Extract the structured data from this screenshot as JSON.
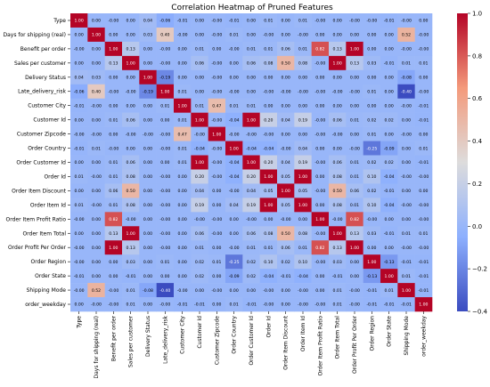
{
  "chart_data": {
    "type": "heatmap",
    "title": "Correlation Heatmap of Pruned Features",
    "xlabel": "",
    "ylabel": "",
    "labels": [
      "Type",
      "Days for shipping (real)",
      "Benefit per order",
      "Sales per customer",
      "Delivery Status",
      "Late_delivery_risk",
      "Customer City",
      "Customer Id",
      "Customer Zipcode",
      "Order Country",
      "Order Customer Id",
      "Order Id",
      "Order Item Discount",
      "Order Item Id",
      "Order Item Profit Ratio",
      "Order Item Total",
      "Order Profit Per Order",
      "Order Region",
      "Order State",
      "Shipping Mode",
      "order_weekday"
    ],
    "cell_labels": [
      [
        "1.00",
        "0.00",
        "-0.00",
        "0.00",
        "0.04",
        "-0.06",
        "-0.01",
        "0.00",
        "-0.00",
        "-0.01",
        "0.00",
        "0.01",
        "0.00",
        "0.01",
        "-0.00",
        "0.00",
        "-0.00",
        "-0.00",
        "-0.01",
        "-0.00",
        "0.00"
      ],
      [
        "0.00",
        "1.00",
        "0.00",
        "0.00",
        "0.03",
        "0.40",
        "-0.00",
        "0.00",
        "-0.00",
        "0.01",
        "0.00",
        "-0.00",
        "0.00",
        "-0.00",
        "0.00",
        "0.00",
        "0.00",
        "0.00",
        "0.00",
        "0.52",
        "-0.00"
      ],
      [
        "-0.00",
        "0.00",
        "1.00",
        "0.13",
        "0.00",
        "-0.00",
        "0.00",
        "0.01",
        "0.00",
        "-0.00",
        "0.01",
        "0.01",
        "0.06",
        "0.01",
        "0.82",
        "0.13",
        "1.00",
        "0.00",
        "0.00",
        "-0.00",
        "-0.00"
      ],
      [
        "0.00",
        "0.00",
        "0.13",
        "1.00",
        "0.00",
        "-0.00",
        "0.00",
        "0.06",
        "-0.00",
        "0.00",
        "0.06",
        "0.08",
        "0.50",
        "0.08",
        "-0.00",
        "1.00",
        "0.13",
        "0.03",
        "-0.01",
        "0.01",
        "0.01"
      ],
      [
        "0.04",
        "0.03",
        "0.00",
        "0.00",
        "1.00",
        "-0.19",
        "0.00",
        "0.00",
        "-0.00",
        "0.00",
        "0.00",
        "0.00",
        "0.00",
        "0.00",
        "0.00",
        "0.00",
        "0.00",
        "0.00",
        "0.00",
        "-0.08",
        "0.00"
      ],
      [
        "-0.06",
        "0.40",
        "-0.00",
        "-0.00",
        "-0.19",
        "1.00",
        "0.01",
        "0.00",
        "-0.00",
        "-0.00",
        "0.00",
        "-0.00",
        "-0.00",
        "-0.00",
        "-0.00",
        "-0.00",
        "-0.00",
        "0.01",
        "0.00",
        "-0.40",
        "-0.00"
      ],
      [
        "-0.01",
        "-0.00",
        "0.00",
        "0.00",
        "0.00",
        "0.01",
        "1.00",
        "0.01",
        "0.47",
        "0.01",
        "0.01",
        "0.00",
        "0.00",
        "0.00",
        "0.00",
        "0.00",
        "0.00",
        "0.00",
        "0.00",
        "-0.00",
        "-0.01"
      ],
      [
        "0.00",
        "0.00",
        "0.01",
        "0.06",
        "0.00",
        "0.00",
        "0.01",
        "1.00",
        "-0.00",
        "-0.04",
        "1.00",
        "0.20",
        "0.04",
        "0.19",
        "-0.00",
        "0.06",
        "0.01",
        "0.02",
        "0.02",
        "0.00",
        "-0.01"
      ],
      [
        "-0.00",
        "-0.00",
        "0.00",
        "-0.00",
        "-0.00",
        "-0.00",
        "0.47",
        "-0.00",
        "1.00",
        "-0.00",
        "-0.00",
        "-0.00",
        "0.00",
        "0.00",
        "-0.00",
        "-0.00",
        "0.00",
        "0.01",
        "0.00",
        "-0.00",
        "0.00"
      ],
      [
        "-0.01",
        "0.01",
        "-0.00",
        "0.00",
        "0.00",
        "-0.00",
        "0.01",
        "-0.04",
        "-0.00",
        "1.00",
        "-0.04",
        "-0.04",
        "-0.00",
        "0.04",
        "0.00",
        "0.00",
        "-0.00",
        "-0.25",
        "-0.09",
        "0.00",
        "0.01"
      ],
      [
        "0.00",
        "0.00",
        "0.01",
        "0.06",
        "0.00",
        "0.00",
        "0.01",
        "1.00",
        "-0.00",
        "-0.04",
        "1.00",
        "0.20",
        "0.04",
        "0.19",
        "-0.00",
        "0.06",
        "0.01",
        "0.02",
        "0.02",
        "0.00",
        "-0.01"
      ],
      [
        "0.01",
        "-0.00",
        "0.01",
        "0.08",
        "0.00",
        "-0.00",
        "0.00",
        "0.20",
        "-0.00",
        "-0.04",
        "0.20",
        "1.00",
        "0.05",
        "1.00",
        "0.00",
        "0.08",
        "0.01",
        "0.10",
        "-0.04",
        "-0.00",
        "-0.00"
      ],
      [
        "0.00",
        "0.00",
        "0.06",
        "0.50",
        "0.00",
        "-0.00",
        "0.00",
        "0.04",
        "0.00",
        "-0.00",
        "0.04",
        "0.05",
        "1.00",
        "0.05",
        "-0.00",
        "0.50",
        "0.06",
        "0.02",
        "-0.01",
        "0.00",
        "0.00"
      ],
      [
        "0.01",
        "-0.00",
        "0.01",
        "0.08",
        "0.00",
        "-0.00",
        "0.00",
        "0.19",
        "0.00",
        "0.04",
        "0.19",
        "1.00",
        "0.05",
        "1.00",
        "0.00",
        "0.08",
        "0.01",
        "0.10",
        "-0.04",
        "-0.00",
        "-0.00"
      ],
      [
        "-0.00",
        "0.00",
        "0.82",
        "-0.00",
        "0.00",
        "-0.00",
        "0.00",
        "-0.00",
        "-0.00",
        "0.00",
        "-0.00",
        "0.00",
        "-0.00",
        "0.00",
        "1.00",
        "-0.00",
        "0.82",
        "-0.00",
        "0.00",
        "0.00",
        "-0.00"
      ],
      [
        "0.00",
        "0.00",
        "0.13",
        "1.00",
        "0.00",
        "-0.00",
        "0.00",
        "0.06",
        "-0.00",
        "0.00",
        "0.06",
        "0.08",
        "0.50",
        "0.08",
        "-0.00",
        "1.00",
        "0.13",
        "0.03",
        "-0.01",
        "0.01",
        "0.01"
      ],
      [
        "-0.00",
        "0.00",
        "1.00",
        "0.13",
        "0.00",
        "-0.00",
        "0.00",
        "0.01",
        "0.00",
        "-0.00",
        "0.01",
        "0.01",
        "0.06",
        "0.01",
        "0.82",
        "0.13",
        "1.00",
        "0.00",
        "0.00",
        "-0.00",
        "-0.00"
      ],
      [
        "-0.00",
        "0.00",
        "0.00",
        "0.03",
        "0.00",
        "0.01",
        "0.00",
        "0.02",
        "0.01",
        "-0.25",
        "0.02",
        "0.10",
        "0.02",
        "0.10",
        "-0.00",
        "0.03",
        "0.00",
        "1.00",
        "-0.13",
        "-0.01",
        "-0.01"
      ],
      [
        "-0.01",
        "0.00",
        "0.00",
        "-0.01",
        "0.00",
        "0.00",
        "0.00",
        "0.02",
        "0.00",
        "-0.09",
        "0.02",
        "-0.04",
        "-0.01",
        "-0.04",
        "0.00",
        "-0.01",
        "0.00",
        "-0.13",
        "1.00",
        "0.01",
        "-0.01"
      ],
      [
        "-0.00",
        "0.52",
        "-0.00",
        "0.01",
        "-0.08",
        "-0.40",
        "-0.00",
        "0.00",
        "-0.00",
        "0.00",
        "0.00",
        "-0.00",
        "0.00",
        "-0.00",
        "0.00",
        "0.01",
        "-0.00",
        "-0.01",
        "0.01",
        "1.00",
        "-0.01"
      ],
      [
        "0.00",
        "-0.00",
        "-0.00",
        "0.01",
        "0.00",
        "-0.00",
        "-0.01",
        "-0.01",
        "0.00",
        "0.01",
        "-0.01",
        "-0.00",
        "0.00",
        "-0.00",
        "-0.00",
        "0.01",
        "-0.00",
        "-0.01",
        "-0.01",
        "-0.01",
        "1.00"
      ]
    ],
    "colorbar": {
      "min": -0.4,
      "max": 1.0,
      "ticks": [
        "-0.4",
        "-0.2",
        "0.0",
        "0.2",
        "0.4",
        "0.6",
        "0.8",
        "1.0"
      ]
    },
    "colors": {
      "low": "#3b4cc0",
      "mid": "#dddcdc",
      "high": "#b40426"
    }
  }
}
